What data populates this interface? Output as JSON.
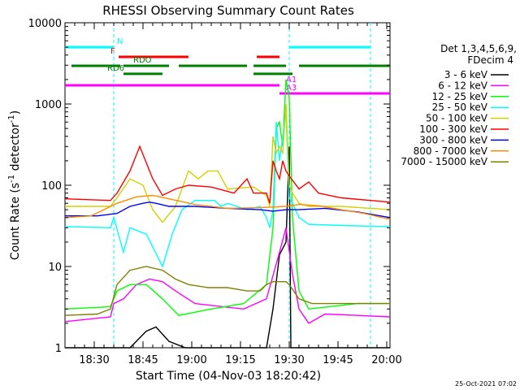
{
  "chart_data": {
    "type": "line",
    "title": "RHESSI Observing Summary Count Rates",
    "xlabel": "Start Time (04-Nov-03 18:20:42)",
    "ylabel_main": "Count Rate (s",
    "ylabel_sup1": "-1",
    "ylabel_mid": " detector",
    "ylabel_sup2": "-1",
    "ylabel_end": ")",
    "footer": "25-Oct-2021 07:02",
    "yscale": "log",
    "ylim": [
      1,
      10000
    ],
    "xlim_min": [
      0,
      100
    ],
    "x_ticks": [
      {
        "min": 9,
        "label": "18:30"
      },
      {
        "min": 24,
        "label": "18:45"
      },
      {
        "min": 39,
        "label": "19:00"
      },
      {
        "min": 54,
        "label": "19:15"
      },
      {
        "min": 69,
        "label": "19:30"
      },
      {
        "min": 84,
        "label": "19:45"
      },
      {
        "min": 99,
        "label": "20:00"
      }
    ],
    "y_ticks": [
      {
        "v": 1,
        "label": "1"
      },
      {
        "v": 10,
        "label": "10"
      },
      {
        "v": 100,
        "label": "100"
      },
      {
        "v": 1000,
        "label": "1000"
      },
      {
        "v": 10000,
        "label": "10000"
      }
    ],
    "legend_header": [
      "Det 1,3,4,5,6,9,",
      "FDecim 4"
    ],
    "legend": [
      {
        "label": "3 - 6 keV",
        "color": "#000000"
      },
      {
        "label": "6 - 12 keV",
        "color": "#ff00ff"
      },
      {
        "label": "12 - 25 keV",
        "color": "#00ff00"
      },
      {
        "label": "25 - 50 keV",
        "color": "#00ffff"
      },
      {
        "label": "50 - 100 keV",
        "color": "#d2d200"
      },
      {
        "label": "100 - 300 keV",
        "color": "#ff0000"
      },
      {
        "label": "300 - 800 keV",
        "color": "#0000ff"
      },
      {
        "label": "800 - 7000 keV",
        "color": "#ff8c00"
      },
      {
        "label": "7000 - 15000 keV",
        "color": "#808000"
      }
    ],
    "vlines_min": [
      15,
      69,
      94
    ],
    "status_bars": [
      {
        "label": "N",
        "color": "#00ffff",
        "segments": [
          [
            0,
            15
          ],
          [
            69,
            94
          ]
        ],
        "y": 5000
      },
      {
        "label": "F",
        "color": "#ff0000",
        "segments": [
          [
            16.5,
            38
          ],
          [
            59,
            66
          ]
        ],
        "y": 3800
      },
      {
        "label": "RDO",
        "color": "#008000",
        "segments": [
          [
            2,
            17
          ],
          [
            18,
            32
          ],
          [
            35,
            56
          ],
          [
            58,
            68
          ],
          [
            72,
            100
          ]
        ],
        "y": 2950
      },
      {
        "label": "RD6",
        "color": "#008000",
        "segments": [
          [
            18,
            30
          ],
          [
            58,
            70
          ]
        ],
        "y": 2350
      },
      {
        "label": "A1",
        "color": "#ff00ff",
        "segments": [
          [
            0,
            66
          ]
        ],
        "y": 1700
      },
      {
        "label": "A3",
        "color": "#ff00ff",
        "segments": [
          [
            66,
            100
          ]
        ],
        "y": 1350
      }
    ],
    "series": [
      {
        "name": "3 - 6 keV",
        "color": "#000000",
        "points": [
          [
            0,
            1
          ],
          [
            20,
            1
          ],
          [
            25,
            1.6
          ],
          [
            28,
            1.8
          ],
          [
            32,
            1.2
          ],
          [
            37,
            1
          ],
          [
            62,
            1
          ],
          [
            64,
            3
          ],
          [
            66,
            14
          ],
          [
            68,
            20
          ],
          [
            69,
            300
          ],
          [
            69.5,
            1
          ],
          [
            100,
            1
          ]
        ]
      },
      {
        "name": "6 - 12 keV",
        "color": "#ff00ff",
        "points": [
          [
            0,
            2.1
          ],
          [
            14,
            2.4
          ],
          [
            15,
            3.5
          ],
          [
            18,
            4
          ],
          [
            22,
            6
          ],
          [
            26,
            7
          ],
          [
            30,
            6.5
          ],
          [
            34,
            5
          ],
          [
            40,
            3.5
          ],
          [
            55,
            3
          ],
          [
            62,
            4
          ],
          [
            66,
            15
          ],
          [
            68,
            30
          ],
          [
            70,
            8
          ],
          [
            72,
            3
          ],
          [
            75,
            2
          ],
          [
            80,
            2.6
          ],
          [
            90,
            2.5
          ],
          [
            100,
            2.4
          ]
        ]
      },
      {
        "name": "12 - 25 keV",
        "color": "#00ff00",
        "points": [
          [
            0,
            3
          ],
          [
            14,
            3.2
          ],
          [
            16,
            5
          ],
          [
            20,
            6
          ],
          [
            25,
            6
          ],
          [
            30,
            4
          ],
          [
            35,
            2.5
          ],
          [
            45,
            3
          ],
          [
            55,
            3.5
          ],
          [
            62,
            6
          ],
          [
            64,
            30
          ],
          [
            65,
            500
          ],
          [
            66,
            600
          ],
          [
            67,
            300
          ],
          [
            68,
            2000
          ],
          [
            69,
            1200
          ],
          [
            70,
            40
          ],
          [
            72,
            5
          ],
          [
            75,
            3
          ],
          [
            90,
            3.5
          ],
          [
            100,
            3.5
          ]
        ]
      },
      {
        "name": "25 - 50 keV",
        "color": "#00ffff",
        "points": [
          [
            0,
            31
          ],
          [
            14,
            30
          ],
          [
            15,
            40
          ],
          [
            18,
            15
          ],
          [
            20,
            30
          ],
          [
            25,
            25
          ],
          [
            30,
            10
          ],
          [
            33,
            25
          ],
          [
            36,
            50
          ],
          [
            40,
            65
          ],
          [
            46,
            65
          ],
          [
            48,
            55
          ],
          [
            50,
            60
          ],
          [
            56,
            50
          ],
          [
            60,
            55
          ],
          [
            62,
            40
          ],
          [
            63,
            30
          ],
          [
            64,
            50
          ],
          [
            65,
            600
          ],
          [
            66,
            200
          ],
          [
            67,
            400
          ],
          [
            68,
            800
          ],
          [
            69,
            70
          ],
          [
            70,
            60
          ],
          [
            72,
            40
          ],
          [
            75,
            33
          ],
          [
            85,
            32
          ],
          [
            100,
            31
          ]
        ]
      },
      {
        "name": "50 - 100 keV",
        "color": "#d2d200",
        "points": [
          [
            0,
            55
          ],
          [
            14,
            55
          ],
          [
            16,
            70
          ],
          [
            20,
            120
          ],
          [
            24,
            100
          ],
          [
            27,
            50
          ],
          [
            30,
            35
          ],
          [
            34,
            55
          ],
          [
            38,
            150
          ],
          [
            41,
            120
          ],
          [
            44,
            150
          ],
          [
            47,
            150
          ],
          [
            50,
            90
          ],
          [
            58,
            95
          ],
          [
            62,
            75
          ],
          [
            63,
            55
          ],
          [
            64,
            400
          ],
          [
            65,
            250
          ],
          [
            66,
            300
          ],
          [
            67,
            250
          ],
          [
            68,
            1000
          ],
          [
            69,
            100
          ],
          [
            70,
            80
          ],
          [
            72,
            60
          ],
          [
            75,
            55
          ],
          [
            85,
            55
          ],
          [
            100,
            50
          ]
        ]
      },
      {
        "name": "100 - 300 keV",
        "color": "#ff0000",
        "points": [
          [
            0,
            68
          ],
          [
            14,
            65
          ],
          [
            16,
            80
          ],
          [
            20,
            150
          ],
          [
            23,
            300
          ],
          [
            27,
            120
          ],
          [
            30,
            75
          ],
          [
            34,
            90
          ],
          [
            38,
            100
          ],
          [
            45,
            95
          ],
          [
            52,
            80
          ],
          [
            56,
            120
          ],
          [
            58,
            80
          ],
          [
            62,
            80
          ],
          [
            63,
            60
          ],
          [
            64,
            200
          ],
          [
            65,
            150
          ],
          [
            66,
            120
          ],
          [
            67,
            200
          ],
          [
            68,
            150
          ],
          [
            69,
            130
          ],
          [
            72,
            90
          ],
          [
            75,
            110
          ],
          [
            78,
            80
          ],
          [
            85,
            70
          ],
          [
            100,
            62
          ]
        ]
      },
      {
        "name": "300 - 800 keV",
        "color": "#0000ff",
        "points": [
          [
            0,
            42
          ],
          [
            10,
            42
          ],
          [
            16,
            45
          ],
          [
            20,
            55
          ],
          [
            24,
            60
          ],
          [
            26,
            62
          ],
          [
            28,
            60
          ],
          [
            32,
            55
          ],
          [
            40,
            55
          ],
          [
            50,
            52
          ],
          [
            60,
            50
          ],
          [
            64,
            48
          ],
          [
            68,
            50
          ],
          [
            72,
            50
          ],
          [
            80,
            52
          ],
          [
            90,
            47
          ],
          [
            100,
            40
          ]
        ]
      },
      {
        "name": "800 - 7000 keV",
        "color": "#ff8c00",
        "points": [
          [
            0,
            40
          ],
          [
            8,
            42
          ],
          [
            16,
            60
          ],
          [
            22,
            72
          ],
          [
            27,
            75
          ],
          [
            32,
            68
          ],
          [
            40,
            58
          ],
          [
            50,
            52
          ],
          [
            60,
            53
          ],
          [
            68,
            55
          ],
          [
            72,
            58
          ],
          [
            78,
            56
          ],
          [
            85,
            50
          ],
          [
            92,
            45
          ],
          [
            100,
            38
          ]
        ]
      },
      {
        "name": "7000 - 15000 keV",
        "color": "#808000",
        "points": [
          [
            0,
            2.5
          ],
          [
            10,
            2.6
          ],
          [
            14,
            3
          ],
          [
            16,
            6
          ],
          [
            20,
            9
          ],
          [
            25,
            10
          ],
          [
            30,
            9
          ],
          [
            34,
            7
          ],
          [
            38,
            6
          ],
          [
            44,
            5.5
          ],
          [
            50,
            5.5
          ],
          [
            56,
            5
          ],
          [
            60,
            5
          ],
          [
            62,
            6
          ],
          [
            64,
            6.5
          ],
          [
            68,
            6.5
          ],
          [
            69,
            6
          ],
          [
            72,
            4
          ],
          [
            76,
            3.5
          ],
          [
            85,
            3.5
          ],
          [
            100,
            3.5
          ]
        ]
      }
    ]
  }
}
